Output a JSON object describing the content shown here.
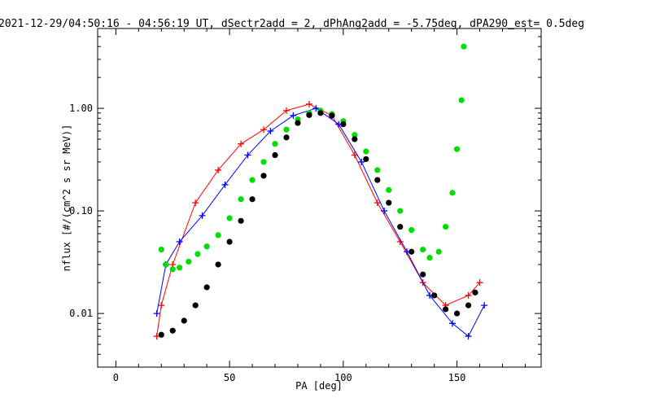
{
  "chart_data": {
    "type": "scatter",
    "title": "2021-12-29/04:50:16 - 04:56:19 UT, dSectr2add = 2, dPhAng2add = -5.75deg, dPA290_est=   0.5deg",
    "xlabel": "PA [deg]",
    "ylabel": "nflux [#/(cm^2 s sr MeV)]",
    "xlim": [
      -8,
      187
    ],
    "ylim": [
      0.003,
      6.0
    ],
    "yscale": "log",
    "grid": false,
    "x_ticks": [
      {
        "value": 0,
        "label": "0"
      },
      {
        "value": 50,
        "label": "50"
      },
      {
        "value": 100,
        "label": "100"
      },
      {
        "value": 150,
        "label": "150"
      }
    ],
    "y_ticks": [
      {
        "value": 0.01,
        "label": "0.01"
      },
      {
        "value": 0.1,
        "label": "0.10"
      },
      {
        "value": 1.0,
        "label": "1.00"
      }
    ],
    "series": [
      {
        "color": "#ff0000",
        "style": "lines+plus",
        "points": [
          [
            18,
            0.006
          ],
          [
            20,
            0.012
          ],
          [
            25,
            0.03
          ],
          [
            35,
            0.12
          ],
          [
            45,
            0.25
          ],
          [
            55,
            0.45
          ],
          [
            65,
            0.62
          ],
          [
            75,
            0.95
          ],
          [
            85,
            1.1
          ],
          [
            95,
            0.85
          ],
          [
            105,
            0.35
          ],
          [
            115,
            0.12
          ],
          [
            125,
            0.05
          ],
          [
            135,
            0.02
          ],
          [
            145,
            0.012
          ],
          [
            155,
            0.015
          ],
          [
            160,
            0.02
          ]
        ]
      },
      {
        "color": "#0000ff",
        "style": "lines+plus",
        "points": [
          [
            18,
            0.01
          ],
          [
            22,
            0.03
          ],
          [
            28,
            0.05
          ],
          [
            38,
            0.09
          ],
          [
            48,
            0.18
          ],
          [
            58,
            0.35
          ],
          [
            68,
            0.6
          ],
          [
            78,
            0.85
          ],
          [
            88,
            1.0
          ],
          [
            98,
            0.7
          ],
          [
            108,
            0.3
          ],
          [
            118,
            0.1
          ],
          [
            128,
            0.04
          ],
          [
            138,
            0.015
          ],
          [
            148,
            0.008
          ],
          [
            155,
            0.006
          ],
          [
            162,
            0.012
          ]
        ]
      },
      {
        "color": "#00dd00",
        "style": "dots",
        "points": [
          [
            20,
            0.042
          ],
          [
            22,
            0.03
          ],
          [
            25,
            0.027
          ],
          [
            28,
            0.028
          ],
          [
            32,
            0.032
          ],
          [
            36,
            0.038
          ],
          [
            40,
            0.045
          ],
          [
            45,
            0.058
          ],
          [
            50,
            0.085
          ],
          [
            55,
            0.13
          ],
          [
            60,
            0.2
          ],
          [
            65,
            0.3
          ],
          [
            70,
            0.45
          ],
          [
            75,
            0.62
          ],
          [
            80,
            0.78
          ],
          [
            85,
            0.9
          ],
          [
            90,
            0.95
          ],
          [
            95,
            0.88
          ],
          [
            100,
            0.75
          ],
          [
            105,
            0.55
          ],
          [
            110,
            0.38
          ],
          [
            115,
            0.25
          ],
          [
            120,
            0.16
          ],
          [
            125,
            0.1
          ],
          [
            130,
            0.065
          ],
          [
            135,
            0.042
          ],
          [
            138,
            0.035
          ],
          [
            142,
            0.04
          ],
          [
            145,
            0.07
          ],
          [
            148,
            0.15
          ],
          [
            150,
            0.4
          ],
          [
            152,
            1.2
          ],
          [
            153,
            4.0
          ]
        ]
      },
      {
        "color": "#000000",
        "style": "dots",
        "points": [
          [
            20,
            0.0062
          ],
          [
            25,
            0.0068
          ],
          [
            30,
            0.0085
          ],
          [
            35,
            0.012
          ],
          [
            40,
            0.018
          ],
          [
            45,
            0.03
          ],
          [
            50,
            0.05
          ],
          [
            55,
            0.08
          ],
          [
            60,
            0.13
          ],
          [
            65,
            0.22
          ],
          [
            70,
            0.35
          ],
          [
            75,
            0.52
          ],
          [
            80,
            0.72
          ],
          [
            85,
            0.86
          ],
          [
            90,
            0.9
          ],
          [
            95,
            0.85
          ],
          [
            100,
            0.7
          ],
          [
            105,
            0.5
          ],
          [
            110,
            0.32
          ],
          [
            115,
            0.2
          ],
          [
            120,
            0.12
          ],
          [
            125,
            0.07
          ],
          [
            130,
            0.04
          ],
          [
            135,
            0.024
          ],
          [
            140,
            0.015
          ],
          [
            145,
            0.011
          ],
          [
            150,
            0.01
          ],
          [
            155,
            0.012
          ],
          [
            158,
            0.016
          ]
        ]
      }
    ]
  }
}
